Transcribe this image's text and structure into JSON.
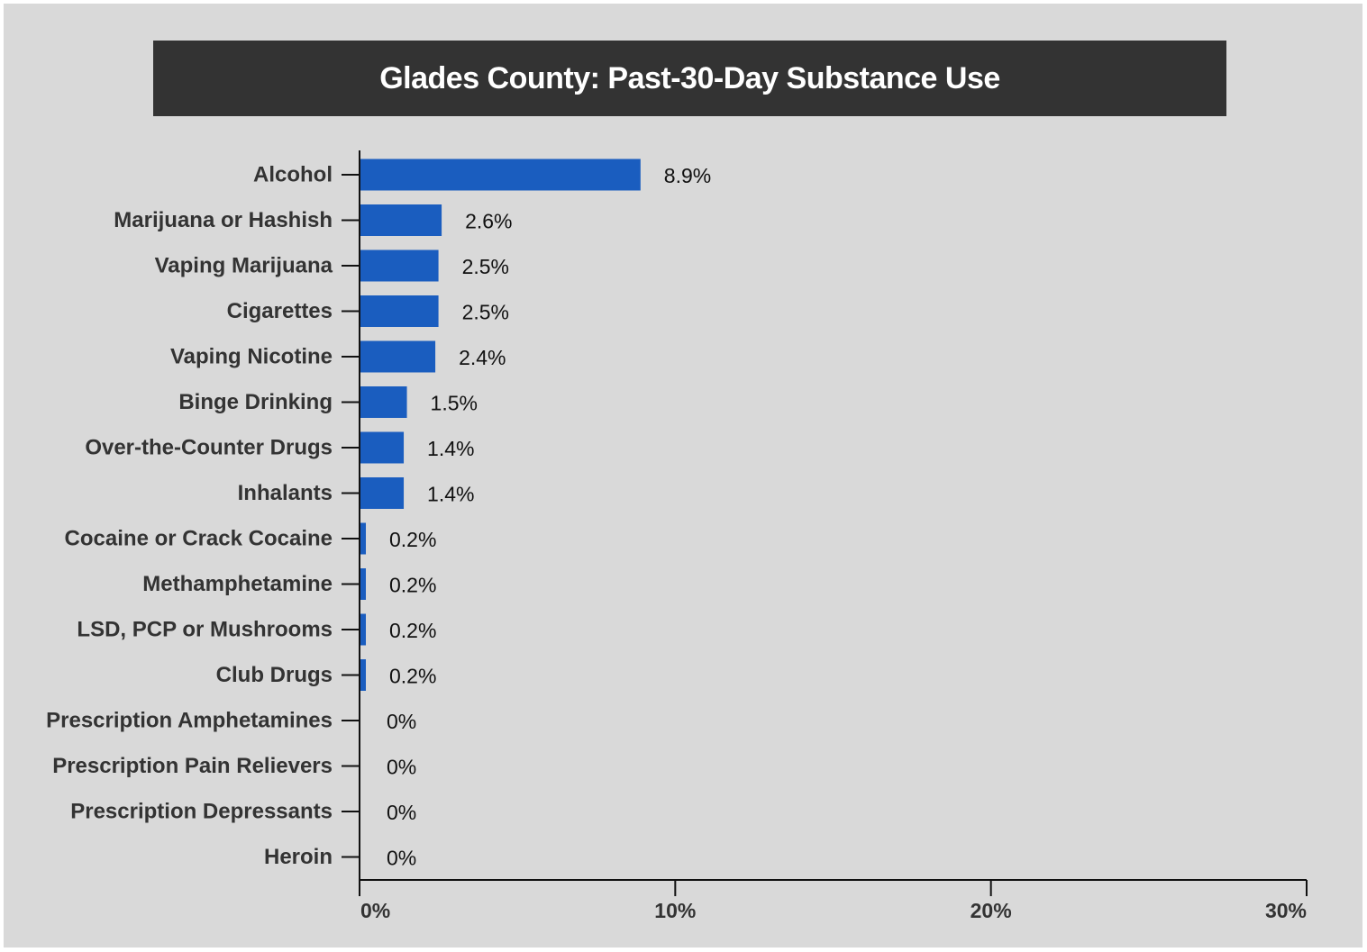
{
  "chart_data": {
    "type": "bar",
    "orientation": "horizontal",
    "title": "Glades County: Past-30-Day Substance Use",
    "xlabel": "",
    "ylabel": "",
    "categories": [
      "Alcohol",
      "Marijuana or Hashish",
      "Vaping Marijuana",
      "Cigarettes",
      "Vaping Nicotine",
      "Binge Drinking",
      "Over-the-Counter Drugs",
      "Inhalants",
      "Cocaine or Crack Cocaine",
      "Methamphetamine",
      "LSD, PCP or Mushrooms",
      "Club Drugs",
      "Prescription Amphetamines",
      "Prescription Pain Relievers",
      "Prescription Depressants",
      "Heroin"
    ],
    "values": [
      8.9,
      2.6,
      2.5,
      2.5,
      2.4,
      1.5,
      1.4,
      1.4,
      0.2,
      0.2,
      0.2,
      0.2,
      0,
      0,
      0,
      0
    ],
    "value_labels": [
      "8.9%",
      "2.6%",
      "2.5%",
      "2.5%",
      "2.4%",
      "1.5%",
      "1.4%",
      "1.4%",
      "0.2%",
      "0.2%",
      "0.2%",
      "0.2%",
      "0%",
      "0%",
      "0%",
      "0%"
    ],
    "xlim": [
      0,
      30
    ],
    "xticks": [
      0,
      10,
      20,
      30
    ],
    "xtick_labels": [
      "0%",
      "10%",
      "20%",
      "30%"
    ],
    "grid": false,
    "legend": "none",
    "colors": {
      "bar": "#1a5dbf",
      "title_background": "#333333",
      "title_text": "#ffffff",
      "background": "#d9d9d9"
    }
  }
}
